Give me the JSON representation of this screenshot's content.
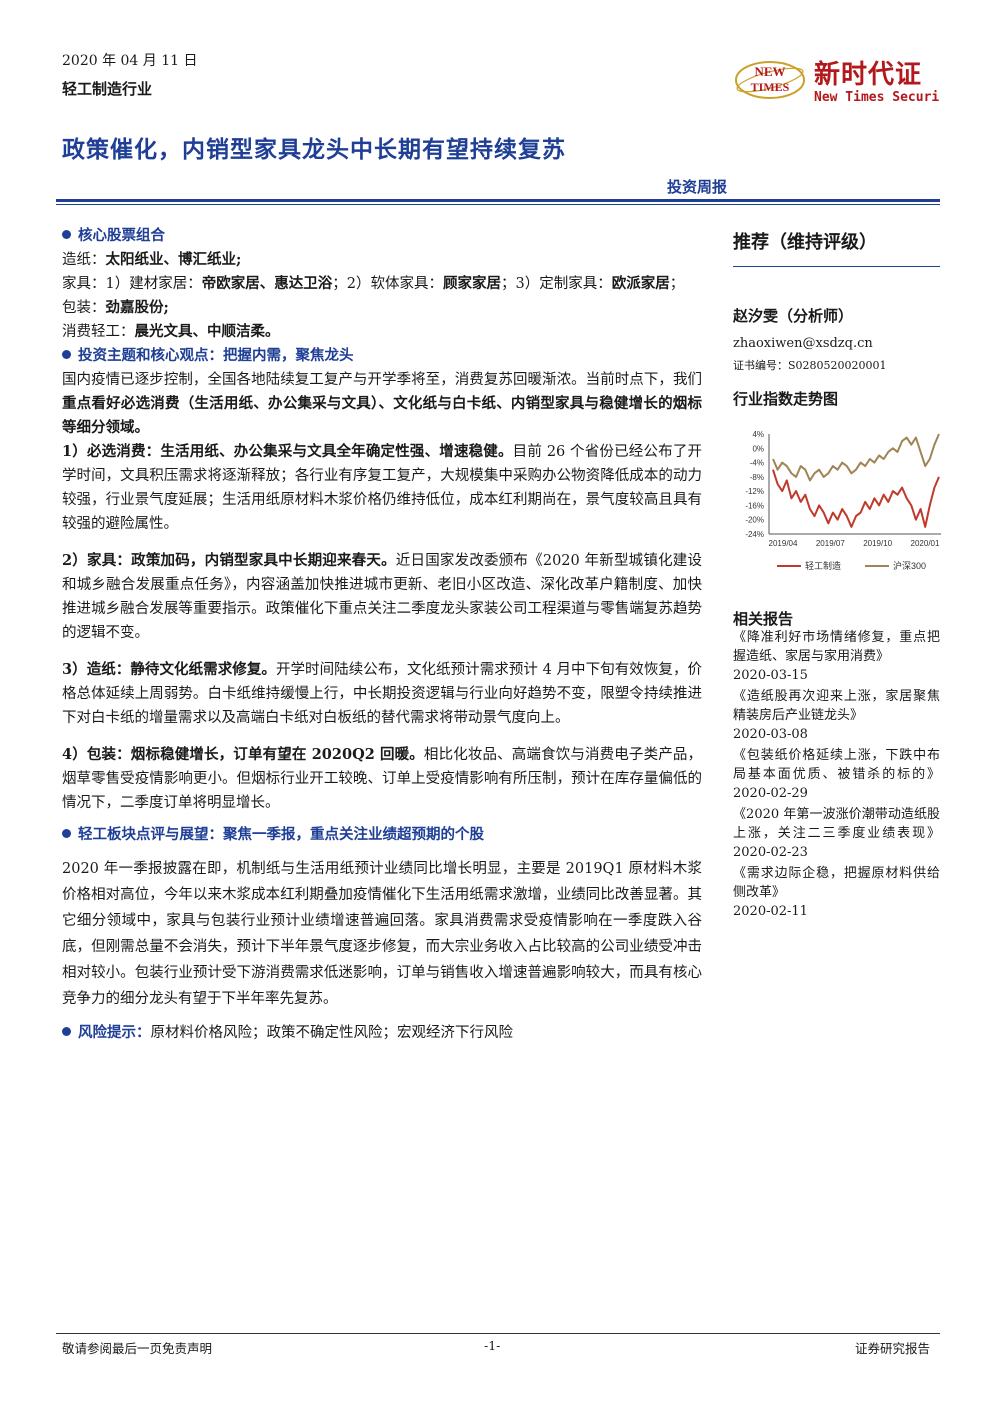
{
  "header": {
    "date": "2020 年 04 月 11 日",
    "industry": "轻工制造行业",
    "logo_cn": "新时代证",
    "logo_en": "New Times Securi",
    "logo_mark_1": "NEW",
    "logo_mark_2": "TIMES"
  },
  "title": "政策催化，内销型家具龙头中长期有望持续复苏",
  "report_type": "投资周报",
  "sections": {
    "core_portfolio": {
      "heading": "核心股票组合",
      "paper_label": "造纸：",
      "paper_stocks": "太阳纸业、博汇纸业;",
      "furniture_label": "家具：1）建材家居：",
      "furniture_building": "帝欧家居、惠达卫浴",
      "furniture_soft_label": "；2）软体家具：",
      "furniture_soft": "顾家家居",
      "furniture_custom_label": "；3）定制家具：",
      "furniture_custom": "欧派家居",
      "furniture_end": "；",
      "packaging_label": "包装：",
      "packaging_stocks": "劲嘉股份;",
      "consumer_label": "消费轻工：",
      "consumer_stocks": "晨光文具、中顺洁柔。"
    },
    "theme": {
      "heading": "投资主题和核心观点：把握内需，聚焦龙头",
      "intro_1": "国内疫情已逐步控制，全国各地陆续复工复产与开学季将至，消费复苏回暖渐浓。当前时点下，我们",
      "intro_bold": "重点看好必选消费（生活用纸、办公集采与文具）、文化纸与白卡纸、内销型家具与稳健增长的烟标等细分领域。",
      "p1_bold": "1）必选消费：生活用纸、办公集采与文具全年确定性强、增速稳健。",
      "p1_text": "目前 26 个省份已经公布了开学时间，文具积压需求将逐渐释放；各行业有序复工复产，大规模集中采购办公物资降低成本的动力较强，行业景气度延展；生活用纸原材料木浆价格仍维持低位，成本红利期尚在，景气度较高且具有较强的避险属性。",
      "p2_bold": "2）家具：政策加码，内销型家具中长期迎来春天。",
      "p2_text": "近日国家发改委颁布《2020 年新型城镇化建设和城乡融合发展重点任务》，内容涵盖加快推进城市更新、老旧小区改造、深化改革户籍制度、加快推进城乡融合发展等重要指示。政策催化下重点关注二季度龙头家装公司工程渠道与零售端复苏趋势的逻辑不变。",
      "p3_bold": "3）造纸：静待文化纸需求修复。",
      "p3_text": "开学时间陆续公布，文化纸预计需求预计 4 月中下旬有效恢复，价格总体延续上周弱势。白卡纸维持缓慢上行，中长期投资逻辑与行业向好趋势不变，限塑令持续推进下对白卡纸的增量需求以及高端白卡纸对白板纸的替代需求将带动景气度向上。",
      "p4_bold": "4）包装：烟标稳健增长，订单有望在 2020Q2 回暖。",
      "p4_text": "相比化妆品、高端食饮与消费电子类产品，烟草零售受疫情影响更小。但烟标行业开工较晚、订单上受疫情影响有所压制，预计在库存量偏低的情况下，二季度订单将明显增长。"
    },
    "review": {
      "heading": "轻工板块点评与展望：聚焦一季报，重点关注业绩超预期的个股",
      "text": "2020 年一季报披露在即，机制纸与生活用纸预计业绩同比增长明显，主要是 2019Q1 原材料木浆价格相对高位，今年以来木浆成本红利期叠加疫情催化下生活用纸需求激增，业绩同比改善显著。其它细分领域中，家具与包装行业预计业绩增速普遍回落。家具消费需求受疫情影响在一季度跌入谷底，但刚需总量不会消失，预计下半年景气度逐步修复，而大宗业务收入占比较高的公司业绩受冲击相对较小。包装行业预计受下游消费需求低迷影响，订单与销售收入增速普遍影响较大，而具有核心竞争力的细分龙头有望于下半年率先复苏。"
    },
    "risk": {
      "heading": "风险提示：",
      "text": "原材料价格风险；政策不确定性风险；宏观经济下行风险"
    }
  },
  "sidebar": {
    "rating": "推荐（维持评级）",
    "analyst": "赵汐雯（分析师）",
    "email": "zhaoxiwen@xsdzq.cn",
    "cert": "证书编号：S0280520020001",
    "chart_heading": "行业指数走势图",
    "related_heading": "相关报告",
    "related": [
      {
        "title": "《降准利好市场情绪修复，重点把握造纸、家居与家用消费》",
        "date": "2020-03-15"
      },
      {
        "title": "《造纸股再次迎来上涨，家居聚焦精装房后产业链龙头》",
        "date": "2020-03-08"
      },
      {
        "title": "《包装纸价格延续上涨，下跌中布局基本面优质、被错杀的标的》",
        "date": "2020-02-29"
      },
      {
        "title": "《2020 年第一波涨价潮带动造纸股上涨，关注二三季度业绩表现》",
        "date": "2020-02-23"
      },
      {
        "title": "《需求边际企稳，把握原材料供给侧改革》",
        "date": "2020-02-11"
      }
    ]
  },
  "chart_data": {
    "type": "line",
    "title": "",
    "x_ticks": [
      "2019/04",
      "2019/07",
      "2019/10",
      "2020/01"
    ],
    "y_ticks": [
      "4%",
      "0%",
      "-4%",
      "-8%",
      "-12%",
      "-16%",
      "-20%",
      "-24%"
    ],
    "ylim": [
      -24,
      4
    ],
    "series": [
      {
        "name": "轻工制造",
        "color": "#c0392b",
        "values": [
          -6,
          -10,
          -12,
          -9,
          -14,
          -12,
          -15,
          -13,
          -17,
          -19,
          -16,
          -18,
          -21,
          -18,
          -20,
          -17,
          -19,
          -22,
          -19,
          -18,
          -15,
          -17,
          -14,
          -16,
          -13,
          -15,
          -12,
          -13,
          -11,
          -14,
          -16,
          -20,
          -17,
          -22,
          -16,
          -11,
          -8
        ]
      },
      {
        "name": "沪深300",
        "color": "#a08456",
        "values": [
          -3,
          -6,
          -4,
          -5,
          -7,
          -8,
          -5,
          -6,
          -9,
          -7,
          -6,
          -8,
          -7,
          -5,
          -6,
          -4,
          -5,
          -7,
          -6,
          -4,
          -5,
          -3,
          -4,
          -2,
          -3,
          -1,
          0,
          -1,
          2,
          3,
          1,
          3,
          -1,
          -5,
          -3,
          1,
          4
        ]
      }
    ]
  },
  "footer": {
    "disclaimer": "敬请参阅最后一页免责声明",
    "page": "-1-",
    "label": "证券研究报告"
  }
}
